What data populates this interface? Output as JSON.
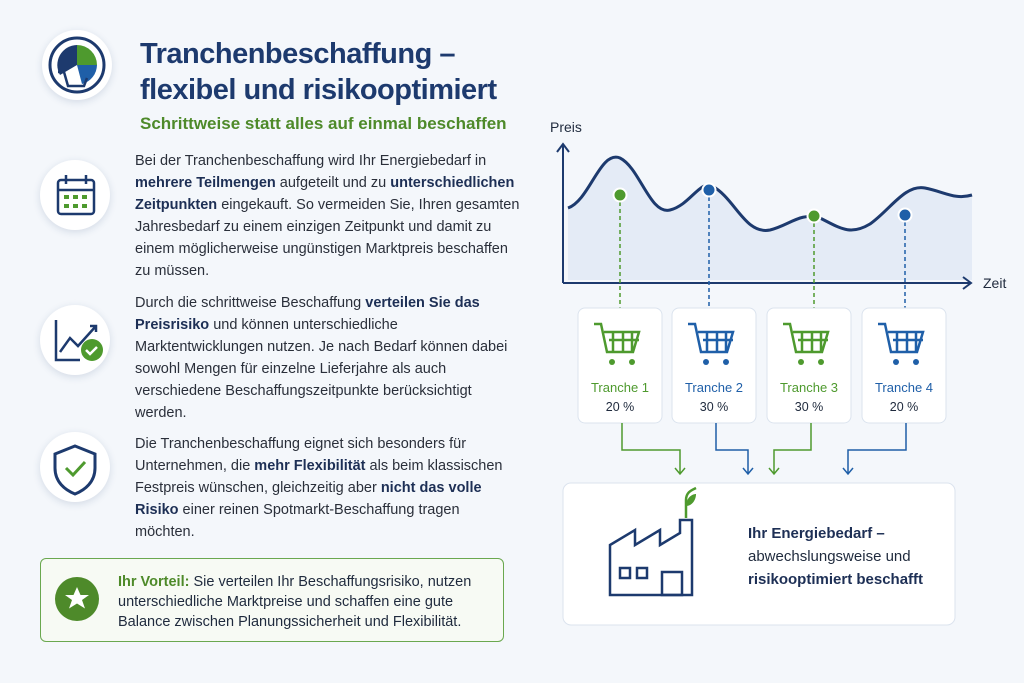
{
  "header": {
    "title_lines": [
      "Tranchenbeschaffung –",
      "flexibel und risikooptimiert"
    ],
    "subtitle": "Schrittweise statt alles auf einmal beschaffen"
  },
  "paragraphs": [
    {
      "segments": [
        {
          "text": "Bei der Tranchenbeschaffung wird Ihr Energiebedarf in ",
          "bold": false
        },
        {
          "text": "mehrere Teilmengen",
          "bold": true
        },
        {
          "text": " aufgeteilt und zu ",
          "bold": false
        },
        {
          "text": "unterschiedlichen Zeitpunkten",
          "bold": true
        },
        {
          "text": " eingekauft. So vermeiden Sie, Ihren gesamten Jahresbedarf zu einem einzigen Zeitpunkt und damit zu einem möglicherweise ungünstigen Marktpreis beschaffen zu müssen.",
          "bold": false
        }
      ]
    },
    {
      "segments": [
        {
          "text": "Durch die schrittweise Beschaffung ",
          "bold": false
        },
        {
          "text": "verteilen Sie das Preisrisiko",
          "bold": true
        },
        {
          "text": " und können unterschiedliche Marktentwicklungen nutzen. Je nach Bedarf können dabei sowohl Mengen für einzelne Lieferjahre als auch verschiedene Beschaffungszeitpunkte berücksichtigt werden.",
          "bold": false
        }
      ]
    },
    {
      "segments": [
        {
          "text": "Die Tranchenbeschaffung eignet sich besonders für Unternehmen, die ",
          "bold": false
        },
        {
          "text": "mehr Flexibilität",
          "bold": true
        },
        {
          "text": " als beim klassischen Festpreis wünschen, gleichzeitig aber ",
          "bold": false
        },
        {
          "text": "nicht das volle Risiko",
          "bold": true
        },
        {
          "text": " einer reinen Spotmarkt-Beschaffung tragen möchten.",
          "bold": false
        }
      ]
    }
  ],
  "advantage": {
    "label": "Ihr Vorteil:",
    "text": "Sie verteilen Ihr Beschaffungsrisiko, nutzen unterschiedliche Marktpreise und schaffen eine gute Balance zwischen Planungssicherheit und Flexibilität."
  },
  "chart": {
    "y_label": "Preis",
    "x_label": "Zeit"
  },
  "tranches": [
    {
      "name": "Tranche 1",
      "share": "20 %",
      "color": "#4e9a2e"
    },
    {
      "name": "Tranche 2",
      "share": "30 %",
      "color": "#1f5fa8"
    },
    {
      "name": "Tranche 3",
      "share": "30 %",
      "color": "#4e9a2e"
    },
    {
      "name": "Tranche 4",
      "share": "20 %",
      "color": "#1f5fa8"
    }
  ],
  "result": {
    "segments": [
      {
        "text": "Ihr Energiebedarf –",
        "bold": true
      },
      {
        "text": " abwechslungsweise und ",
        "bold": false
      },
      {
        "text": "risikooptimiert beschafft",
        "bold": true
      }
    ]
  }
}
